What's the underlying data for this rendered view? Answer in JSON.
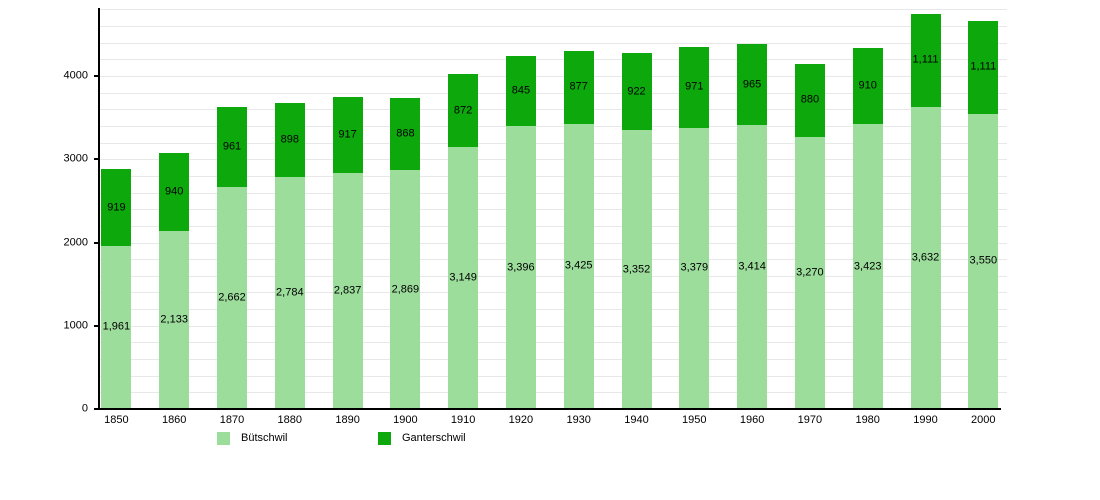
{
  "chart_data": {
    "type": "bar",
    "stacked": true,
    "title": "",
    "xlabel": "",
    "ylabel": "",
    "categories": [
      "1850",
      "1860",
      "1870",
      "1880",
      "1890",
      "1900",
      "1910",
      "1920",
      "1930",
      "1940",
      "1950",
      "1960",
      "1970",
      "1980",
      "1990",
      "2000"
    ],
    "series": [
      {
        "name": "Bütschwil",
        "color": "#9CDD9C",
        "values": [
          1961,
          2133,
          2662,
          2784,
          2837,
          2869,
          3149,
          3396,
          3425,
          3352,
          3379,
          3414,
          3270,
          3423,
          3632,
          3550
        ],
        "labels": [
          "1,961",
          "2,133",
          "2,662",
          "2,784",
          "2,837",
          "2,869",
          "3,149",
          "3,396",
          "3,425",
          "3,352",
          "3,379",
          "3,414",
          "3,270",
          "3,423",
          "3,632",
          "3,550"
        ]
      },
      {
        "name": "Ganterschwil",
        "color": "#0CA80C",
        "values": [
          919,
          940,
          961,
          898,
          917,
          868,
          872,
          845,
          877,
          922,
          971,
          965,
          880,
          910,
          1111,
          1111
        ],
        "labels": [
          "919",
          "940",
          "961",
          "898",
          "917",
          "868",
          "872",
          "845",
          "877",
          "922",
          "971",
          "965",
          "880",
          "910",
          "1,111",
          "1,111"
        ]
      }
    ],
    "ylim": [
      0,
      4800
    ],
    "grid": true,
    "grid_step": 200,
    "y_tick_values": [
      0,
      1000,
      2000,
      3000,
      4000
    ],
    "y_tick_labels": [
      "0",
      "1000",
      "2000",
      "3000",
      "4000"
    ],
    "legend_position": "bottom",
    "axis_color": "#000000",
    "grid_color": "#E8E8E8",
    "text_color": "#000000"
  }
}
